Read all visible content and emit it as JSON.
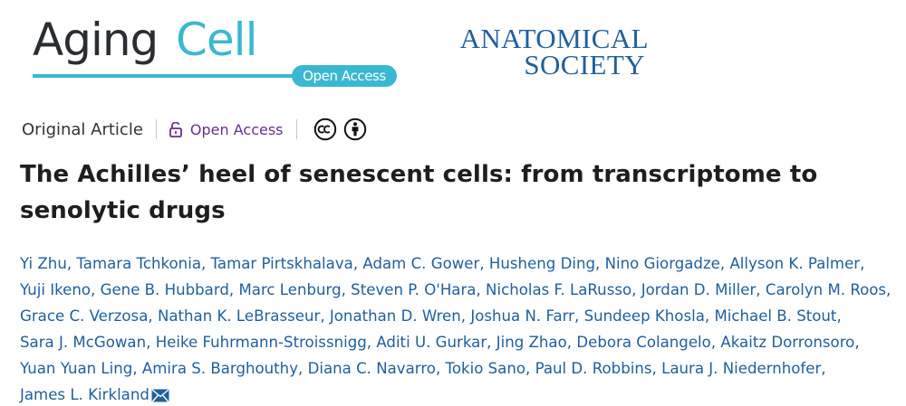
{
  "journal_logo": {
    "word1": "Aging",
    "word2": "Cell",
    "open_access_pill": "Open Access"
  },
  "society_logo": {
    "line1": "ANATOMICAL",
    "line2": "SOCIETY"
  },
  "meta": {
    "article_type": "Original Article",
    "open_access_label": "Open Access",
    "license_icons": [
      "creative-commons-icon",
      "attribution-icon"
    ]
  },
  "colors": {
    "brand_cyan": "#3ab8d2",
    "author_blue": "#1f5f9e",
    "open_access_purple": "#6b2c91"
  },
  "article": {
    "title": "The Achilles’ heel of senescent cells: from transcriptome to senolytic drugs",
    "authors": [
      "Yi Zhu",
      "Tamara Tchkonia",
      "Tamar Pirtskhalava",
      "Adam C. Gower",
      "Husheng Ding",
      "Nino Giorgadze",
      "Allyson K. Palmer",
      "Yuji Ikeno",
      "Gene B. Hubbard",
      "Marc Lenburg",
      "Steven P. O'Hara",
      "Nicholas F. LaRusso",
      "Jordan D. Miller",
      "Carolyn M. Roos",
      "Grace C. Verzosa",
      "Nathan K. LeBrasseur",
      "Jonathan D. Wren",
      "Joshua N. Farr",
      "Sundeep Khosla",
      "Michael B. Stout",
      "Sara J. McGowan",
      "Heike Fuhrmann-Stroissnigg",
      "Aditi U. Gurkar",
      "Jing Zhao",
      "Debora Colangelo",
      "Akaitz Dorronsoro",
      "Yuan Yuan Ling",
      "Amira S. Barghouthy",
      "Diana C. Navarro",
      "Tokio Sano",
      "Paul D. Robbins",
      "Laura J. Niedernhofer",
      "James L. Kirkland"
    ],
    "corresponding_author_icon": "envelope-icon"
  }
}
